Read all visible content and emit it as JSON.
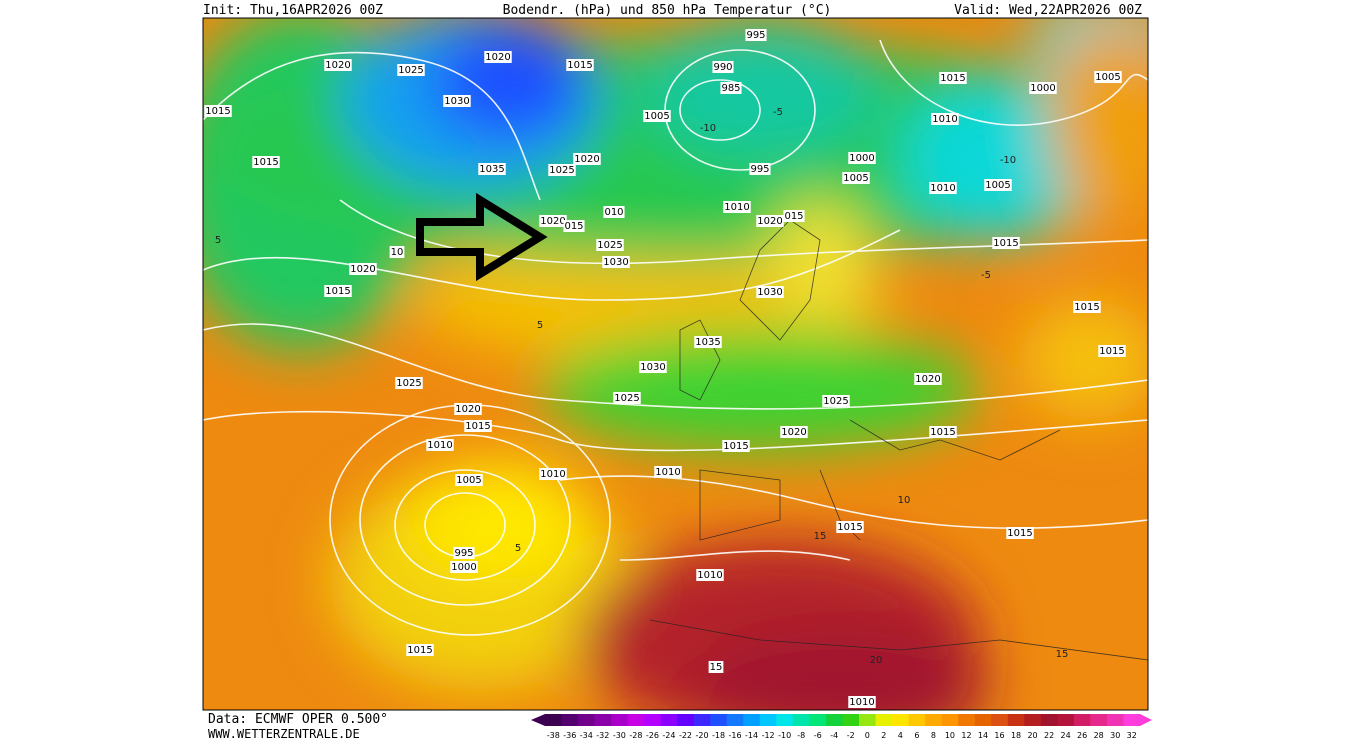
{
  "header": {
    "init": "Init: Thu,16APR2026 00Z",
    "title": "Bodendr. (hPa) und 850 hPa Temperatur (°C)",
    "valid": "Valid: Wed,22APR2026 00Z"
  },
  "map": {
    "isobar_labels": [
      "1020",
      "1015",
      "1020",
      "1025",
      "1030",
      "1015",
      "1015",
      "1035",
      "1025",
      "1020",
      "1005",
      "995",
      "990",
      "985",
      "1015",
      "1005",
      "1000",
      "1010",
      "1000",
      "995",
      "1005",
      "1010",
      "1005",
      "010",
      "1020",
      "015",
      "1010",
      "1020",
      "015",
      "1025",
      "1030",
      "1015",
      "10",
      "1020",
      "1015",
      "1030",
      "1015",
      "1035",
      "1015",
      "1030",
      "1020",
      "1025",
      "1025",
      "1025",
      "1020",
      "1015",
      "1015",
      "1020",
      "1015",
      "1010",
      "1010",
      "1010",
      "1005",
      "1015",
      "1015",
      "995",
      "1000",
      "1010",
      "15",
      "1015",
      "1010"
    ],
    "temperature_labels": [
      "-10",
      "-5",
      "5",
      "-10",
      "5",
      "-5",
      "15",
      "20",
      "15",
      "5",
      "10"
    ]
  },
  "footer": {
    "source": "Data: ECMWF OPER 0.500°",
    "website": "WWW.WETTERZENTRALE.DE"
  },
  "colorbar": {
    "ticks": [
      -38,
      -36,
      -34,
      -32,
      -30,
      -28,
      -26,
      -24,
      -22,
      -20,
      -18,
      -16,
      -14,
      -12,
      -10,
      -8,
      -6,
      -4,
      -2,
      0,
      2,
      4,
      6,
      8,
      10,
      12,
      14,
      16,
      18,
      20,
      22,
      24,
      26,
      28,
      30,
      32
    ],
    "colors": [
      "#3c0050",
      "#55006e",
      "#70008c",
      "#8c00aa",
      "#a800c8",
      "#c800e6",
      "#b400ff",
      "#8c00ff",
      "#6400ff",
      "#3c28ff",
      "#1e50ff",
      "#1478ff",
      "#00a0ff",
      "#00c8ff",
      "#00e6e6",
      "#00e6aa",
      "#00e678",
      "#14d23c",
      "#32d214",
      "#96e614",
      "#e6f000",
      "#ffe600",
      "#ffc800",
      "#ffaa00",
      "#ff9600",
      "#f07800",
      "#e66400",
      "#dc5014",
      "#c83214",
      "#b41e1e",
      "#a0142d",
      "#b4143c",
      "#d21e64",
      "#e6288c",
      "#f032b4",
      "#ff3cdc"
    ],
    "left_color": "#3c0050",
    "right_color": "#ff3cdc"
  }
}
